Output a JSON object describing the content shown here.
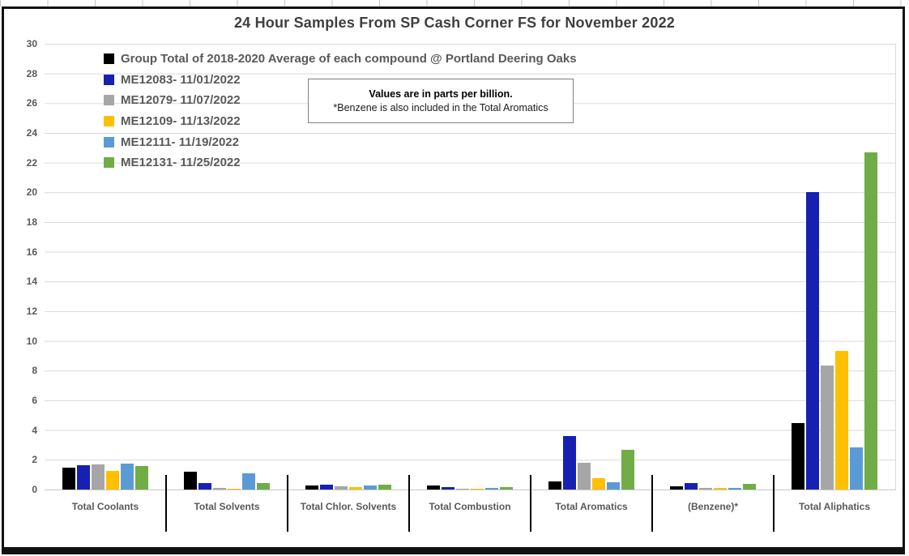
{
  "chart": {
    "annotation": {
      "line1": "Values are in parts per billion.",
      "line2": "*Benzene is also included in the Total Aromatics"
    }
  },
  "chart_data": {
    "type": "bar",
    "title": "24 Hour Samples From SP Cash Corner FS for November 2022",
    "ylabel": "",
    "xlabel": "",
    "ylim": [
      0,
      30
    ],
    "ytick_step": 2,
    "grid": true,
    "legend_position": "top-left",
    "units": "parts per billion",
    "categories": [
      "Total Coolants",
      "Total Solvents",
      "Total Chlor. Solvents",
      "Total Combustion",
      "Total Aromatics",
      "(Benzene)*",
      "Total Aliphatics"
    ],
    "series": [
      {
        "name": "Group Total of 2018-2020 Average of each compound @ Portland Deering Oaks",
        "color": "#000000",
        "values": [
          1.45,
          1.2,
          0.3,
          0.25,
          0.55,
          0.2,
          4.45
        ]
      },
      {
        "name": "ME12083- 11/01/2022",
        "color": "#1621B2",
        "values": [
          1.65,
          0.45,
          0.33,
          0.18,
          3.6,
          0.45,
          20.0
        ]
      },
      {
        "name": "ME12079- 11/07/2022",
        "color": "#A6A6A6",
        "values": [
          1.7,
          0.12,
          0.24,
          0.08,
          1.8,
          0.1,
          8.35
        ]
      },
      {
        "name": "ME12109- 11/13/2022",
        "color": "#FFC000",
        "values": [
          1.25,
          0.06,
          0.15,
          0.08,
          0.75,
          0.1,
          9.3
        ]
      },
      {
        "name": "ME12111- 11/19/2022",
        "color": "#5B9BD5",
        "values": [
          1.75,
          1.1,
          0.25,
          0.13,
          0.5,
          0.1,
          2.85
        ]
      },
      {
        "name": "ME12131- 11/25/2022",
        "color": "#70AD47",
        "values": [
          1.6,
          0.45,
          0.32,
          0.18,
          2.65,
          0.4,
          22.7
        ]
      }
    ],
    "annotations": [
      "Values are in parts per billion.",
      "*Benzene is also included in the Total Aromatics"
    ]
  }
}
